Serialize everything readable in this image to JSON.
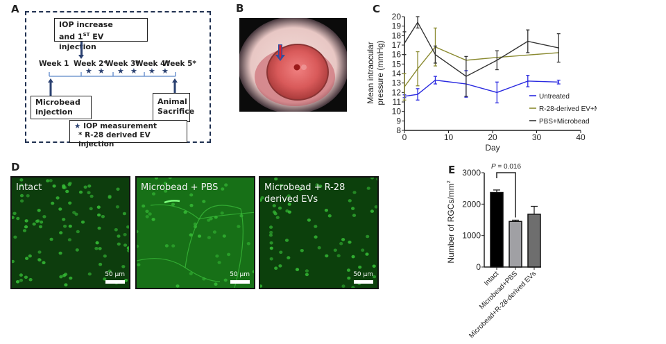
{
  "panel_labels": {
    "a": "A",
    "b": "B",
    "c": "C",
    "d": "D",
    "e": "E"
  },
  "panelA": {
    "box_top_line1": "IOP increase",
    "box_top_line2_pre": "and 1",
    "box_top_line2_sup": "ST",
    "box_top_line2_post": " EV injection",
    "weeks": [
      "Week 1",
      "Week 2*",
      "Week 3*",
      "Week 4*",
      "Week 5*"
    ],
    "box_left_line1": "Microbead",
    "box_left_line2": "injection",
    "box_right_line1": "Animal",
    "box_right_line2": "Sacrifice",
    "legend_star": "★",
    "legend_line1": "IOP measurement",
    "legend_line2": "* R-28 derived EV injection",
    "star_glyph": "★",
    "accent_color": "#2a4070"
  },
  "panelB": {
    "image_description": "Mouse eye photograph with arrow indicating injection site",
    "arrow_colors": {
      "fill": "#e0202a",
      "outline": "#3050a0"
    }
  },
  "panelD": {
    "images": [
      {
        "label_line1": "Intact",
        "label_line2": "",
        "scale": "50 µm"
      },
      {
        "label_line1": "Microbead + PBS",
        "label_line2": "",
        "scale": "50 µm"
      },
      {
        "label_line1": "Microbead + R-28",
        "label_line2": "derived EVs",
        "scale": "50 µm"
      }
    ]
  },
  "chart_data": [
    {
      "type": "line",
      "panel": "C",
      "title": "",
      "xlabel": "Day",
      "ylabel_line1": "Mean intraocular",
      "ylabel_line2": "pressure (mmHg)",
      "xlim": [
        0,
        40
      ],
      "ylim": [
        8,
        20
      ],
      "xticks": [
        0,
        10,
        20,
        30,
        40
      ],
      "yticks": [
        8,
        9,
        10,
        11,
        12,
        13,
        14,
        15,
        16,
        17,
        18,
        19,
        20
      ],
      "grid": false,
      "legend_position": "bottom-right",
      "x": [
        0,
        3,
        7,
        14,
        21,
        28,
        35
      ],
      "series": [
        {
          "name": "Untreated",
          "color": "#2a2ae0",
          "values": [
            11.6,
            11.8,
            13.3,
            12.9,
            12.0,
            13.2,
            13.1
          ],
          "errors": [
            0.15,
            0.6,
            0.4,
            1.4,
            1.1,
            0.6,
            0.2
          ]
        },
        {
          "name": "R-28-derived EV+Microbead",
          "color": "#8a8a30",
          "values": [
            12.6,
            14.5,
            16.8,
            15.4,
            15.7,
            null,
            16.2
          ],
          "errors": [
            1.4,
            1.8,
            2.0,
            0,
            0,
            0,
            0
          ],
          "x_override": [
            0,
            3,
            7,
            14,
            21,
            28,
            35
          ]
        },
        {
          "name": "PBS+Microbead",
          "color": "#333333",
          "values": [
            17.2,
            19.4,
            16.0,
            13.7,
            15.4,
            17.4,
            16.7
          ],
          "errors": [
            1.2,
            0.6,
            0.9,
            2.1,
            1.0,
            1.2,
            1.5
          ]
        }
      ]
    },
    {
      "type": "bar",
      "panel": "E",
      "title": "",
      "xlabel": "",
      "ylabel": "Number of RGCs/mm",
      "ylabel_sup": "2",
      "ylim": [
        0,
        3000
      ],
      "yticks": [
        0,
        1000,
        2000,
        3000
      ],
      "grid": false,
      "categories": [
        "Intact",
        "Microbead+PBS",
        "Microbead+R-28-derived EVs"
      ],
      "values": [
        2370,
        1450,
        1680
      ],
      "errors": [
        80,
        40,
        250
      ],
      "bar_colors": [
        "#000000",
        "#a0a0a4",
        "#6e6e6e"
      ],
      "annotation": {
        "p_label": "P",
        "p_text": " = 0.016",
        "between": [
          0,
          1
        ]
      }
    }
  ]
}
